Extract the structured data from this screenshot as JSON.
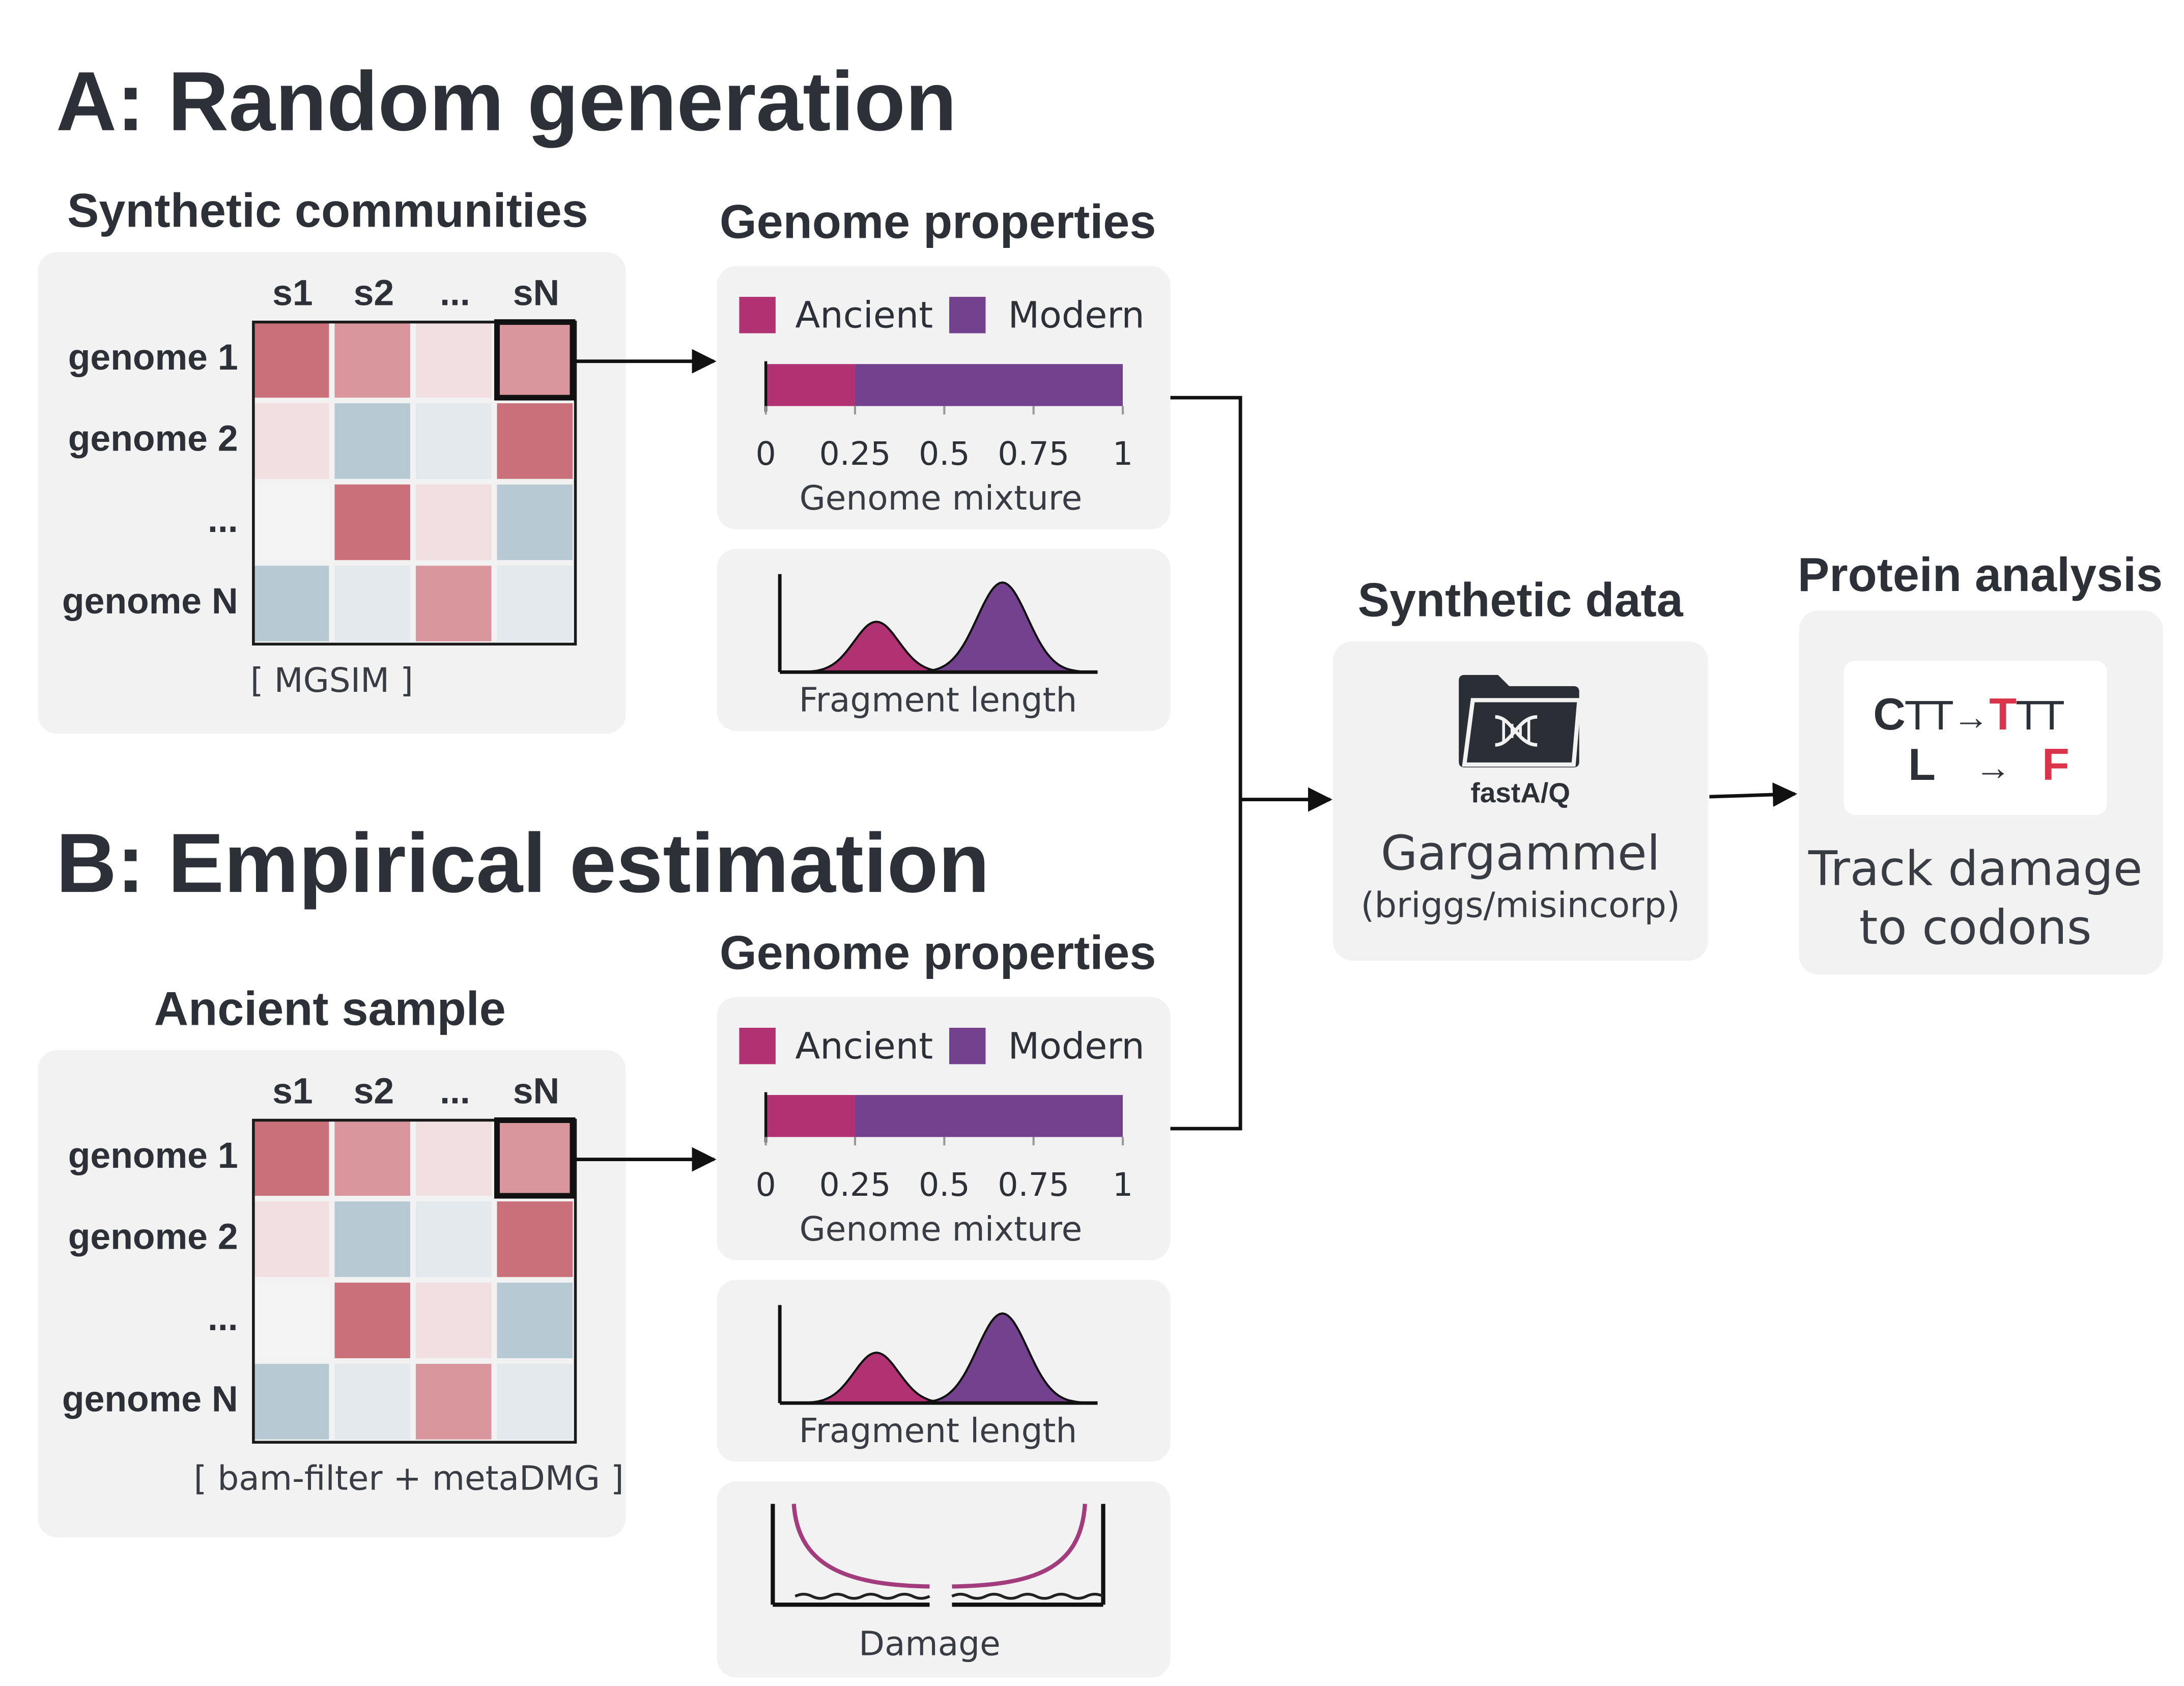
{
  "colors": {
    "ancient": "#b13272",
    "modern": "#73418d",
    "damage_red": "#d9344a",
    "heat_strong": "#c9707a",
    "heat_mid": "#d9979d",
    "heat_faint": "#f1dfe1",
    "heat_blue": "#b7cad4",
    "heat_blue_light": "#e3e9ec",
    "heat_neutral": "#f4f4f4",
    "panel": "#f2f2f2"
  },
  "section_a": {
    "title": "A: Random generation",
    "communities_title": "Synthetic communities",
    "matrix_caption": "[ MGSIM ]"
  },
  "section_b": {
    "title": "B: Empirical estimation",
    "sample_title": "Ancient sample",
    "matrix_caption": "[ bam-filter + metaDMG ]"
  },
  "matrix": {
    "columns": [
      "s1",
      "s2",
      "...",
      "sN"
    ],
    "rows": [
      "genome 1",
      "genome 2",
      "...",
      "genome N"
    ],
    "cells": [
      [
        "heat_strong",
        "heat_mid",
        "heat_faint",
        "heat_mid"
      ],
      [
        "heat_faint",
        "heat_blue",
        "heat_blue_light",
        "heat_strong"
      ],
      [
        "heat_neutral",
        "heat_strong",
        "heat_faint",
        "heat_blue"
      ],
      [
        "heat_blue",
        "heat_blue_light",
        "heat_mid",
        "heat_blue_light"
      ]
    ]
  },
  "genome_properties": {
    "title": "Genome properties",
    "legend": {
      "ancient": "Ancient",
      "modern": "Modern"
    },
    "mixture": {
      "ancient_fraction": 0.25,
      "ticks": [
        "0",
        "0.25",
        "0.5",
        "0.75",
        "1"
      ],
      "xlabel": "Genome mixture"
    },
    "fragment_label": "Fragment length",
    "damage_label": "Damage"
  },
  "synthetic_data": {
    "title": "Synthetic data",
    "file_label": "fastA/Q",
    "tool": "Gargammel",
    "tool_sub": "(briggs/misincorp)"
  },
  "protein_analysis": {
    "title": "Protein analysis",
    "codon_from_prefix": "C",
    "codon_from_rest": "TT",
    "codon_to_changed": "T",
    "codon_to_rest": "TT",
    "aa_from": "L",
    "aa_to": "F",
    "arrow": "→",
    "caption_line1": "Track damage",
    "caption_line2": "to codons"
  }
}
